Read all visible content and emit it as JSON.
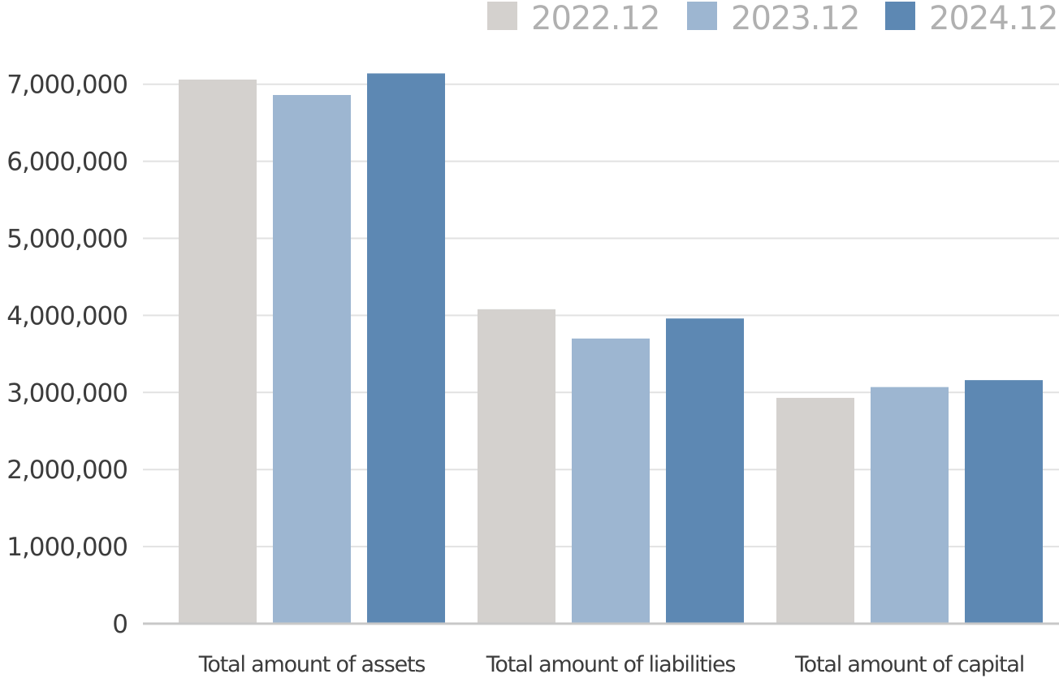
{
  "chart_data": {
    "type": "bar",
    "title": "",
    "xlabel": "",
    "ylabel": "",
    "categories": [
      "Total amount of assets",
      "Total amount of liabilities",
      "Total amount of capital"
    ],
    "series": [
      {
        "name": "2022.12",
        "color": "#d4d1ce",
        "values": [
          7060000,
          4080000,
          2930000
        ]
      },
      {
        "name": "2023.12",
        "color": "#9db6d1",
        "values": [
          6860000,
          3700000,
          3070000
        ]
      },
      {
        "name": "2024.12",
        "color": "#5d88b3",
        "values": [
          7140000,
          3960000,
          3160000
        ]
      }
    ],
    "ylim": [
      0,
      7000000
    ],
    "yticks": [
      {
        "value": 0,
        "label": "0"
      },
      {
        "value": 1000000,
        "label": "1,000,000"
      },
      {
        "value": 2000000,
        "label": "2,000,000"
      },
      {
        "value": 3000000,
        "label": "3,000,000"
      },
      {
        "value": 4000000,
        "label": "4,000,000"
      },
      {
        "value": 5000000,
        "label": "5,000,000"
      },
      {
        "value": 6000000,
        "label": "6,000,000"
      },
      {
        "value": 7000000,
        "label": "7,000,000"
      }
    ],
    "grid": true,
    "legend_position": "top-right",
    "gridline_color": "#e2e2e2",
    "axis_color": "#c8c8c8"
  }
}
